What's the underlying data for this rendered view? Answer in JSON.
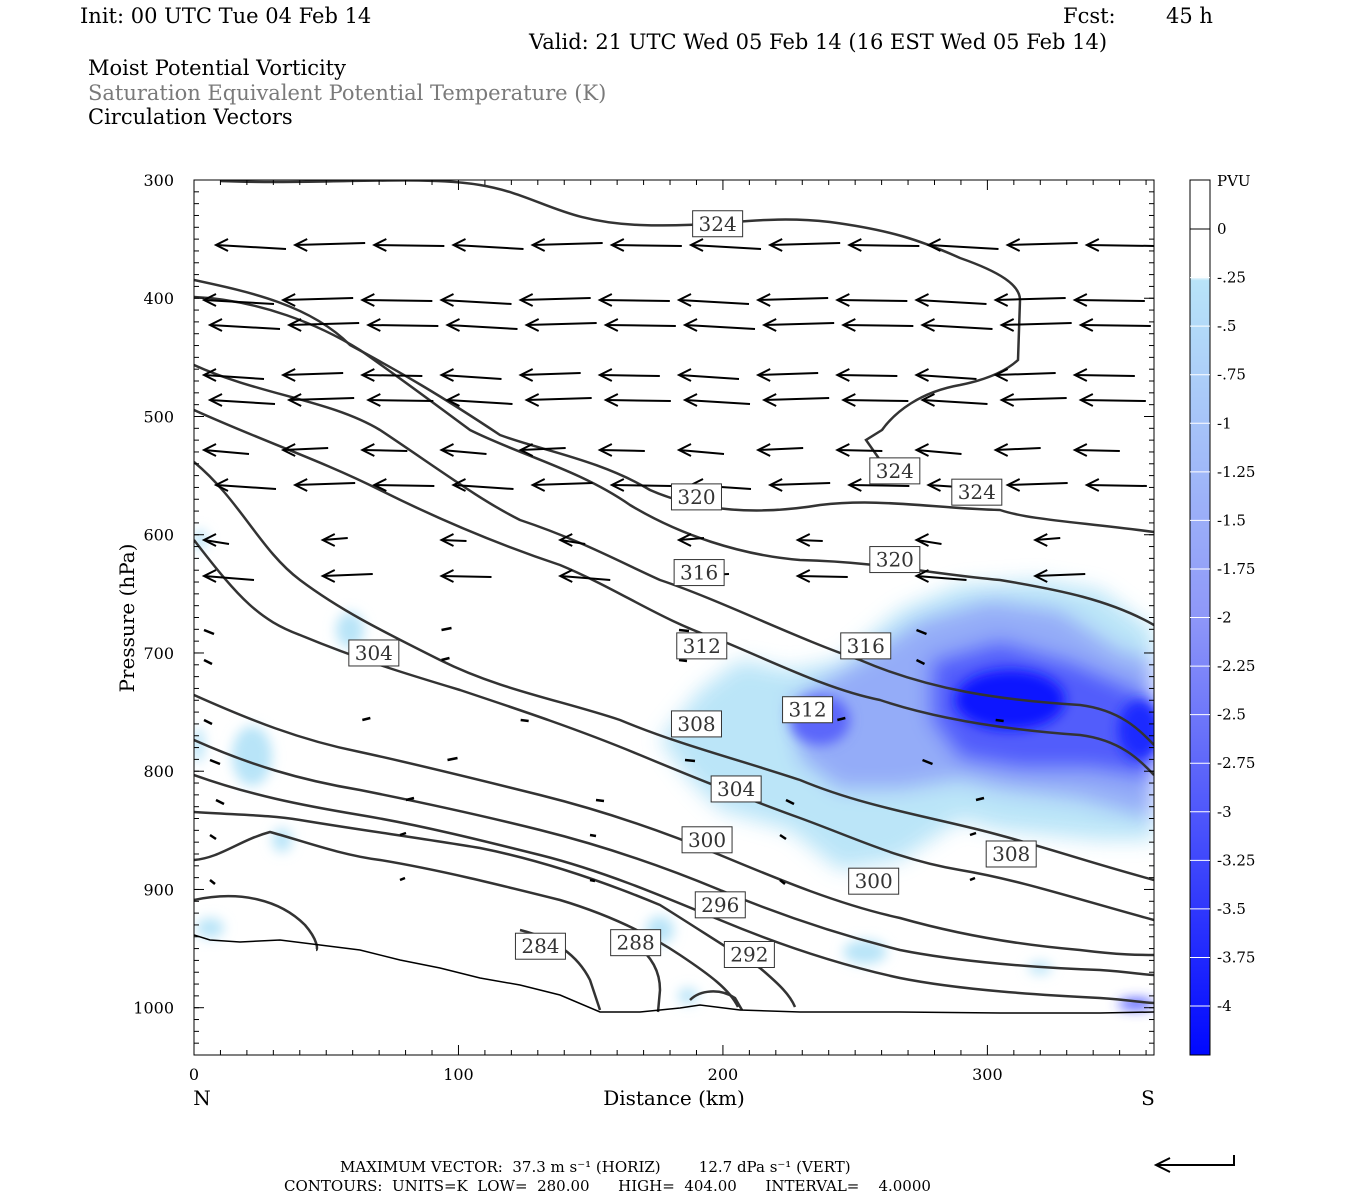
{
  "header": {
    "init": "Init: 00 UTC Tue 04 Feb 14",
    "fcst_label": "Fcst:",
    "fcst_value": "45 h",
    "valid": "Valid: 21 UTC Wed 05 Feb 14 (16 EST Wed 05 Feb 14)",
    "fields": [
      "Moist Potential Vorticity",
      "Saturation Equivalent Potential Temperature (K)",
      "Circulation Vectors"
    ]
  },
  "colors": {
    "contour": "#333333",
    "shade_light": "#b8e4f8",
    "shade_dark": "#0008ff"
  },
  "chart_data": {
    "type": "heatmap",
    "xlabel": "Distance (km)",
    "ylabel": "Pressure (hPa)",
    "xlim": [
      0,
      363
    ],
    "ylim": [
      1040,
      300
    ],
    "x_ticks": [
      0,
      100,
      200,
      300
    ],
    "y_ticks": [
      300,
      400,
      500,
      600,
      700,
      800,
      900,
      1000
    ],
    "end_labels": {
      "left": "N",
      "right": "S"
    },
    "colorbar": {
      "title": "PVU",
      "levels": [
        "0",
        "-.25",
        "-.5",
        "-.75",
        "-1",
        "-1.25",
        "-1.5",
        "-1.75",
        "-2",
        "-2.25",
        "-2.5",
        "-2.75",
        "-3",
        "-3.25",
        "-3.5",
        "-3.75",
        "-4"
      ]
    },
    "contour_labels": [
      {
        "value": "324",
        "x": 198,
        "p": 337
      },
      {
        "value": "324",
        "x": 265,
        "p": 546
      },
      {
        "value": "324",
        "x": 296,
        "p": 564
      },
      {
        "value": "320",
        "x": 190,
        "p": 568
      },
      {
        "value": "320",
        "x": 265,
        "p": 621
      },
      {
        "value": "316",
        "x": 191,
        "p": 632
      },
      {
        "value": "316",
        "x": 254,
        "p": 694
      },
      {
        "value": "312",
        "x": 192,
        "p": 694
      },
      {
        "value": "312",
        "x": 232,
        "p": 748
      },
      {
        "value": "308",
        "x": 190,
        "p": 760
      },
      {
        "value": "308",
        "x": 309,
        "p": 870
      },
      {
        "value": "304",
        "x": 68,
        "p": 700
      },
      {
        "value": "304",
        "x": 205,
        "p": 815
      },
      {
        "value": "300",
        "x": 194,
        "p": 858
      },
      {
        "value": "300",
        "x": 257,
        "p": 893
      },
      {
        "value": "296",
        "x": 199,
        "p": 913
      },
      {
        "value": "292",
        "x": 210,
        "p": 955
      },
      {
        "value": "288",
        "x": 167,
        "p": 945
      },
      {
        "value": "284",
        "x": 131,
        "p": 948
      }
    ],
    "footer": {
      "max_vector": "MAXIMUM VECTOR:  37.3 m s⁻¹ (HORIZ)        12.7 dPa s⁻¹ (VERT)",
      "contours": "CONTOURS:  UNITS=K  LOW=  280.00      HIGH=  404.00      INTERVAL=    4.0000"
    }
  }
}
